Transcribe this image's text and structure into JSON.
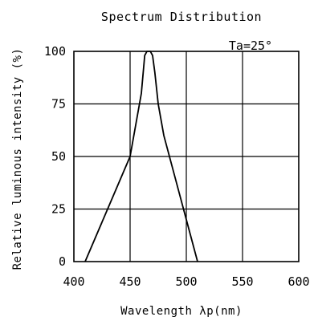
{
  "chart_data": {
    "type": "line",
    "title": "Spectrum Distribution",
    "xlabel": "Wavelength λp(nm)",
    "ylabel": "Relative luminous intensity (%)",
    "x_ticks": [
      "400",
      "450",
      "500",
      "550",
      "600"
    ],
    "y_ticks": [
      "0",
      "25",
      "50",
      "75",
      "100"
    ],
    "xlim": [
      400,
      600
    ],
    "ylim": [
      0,
      100
    ],
    "grid": true,
    "annotation": "Ta=25°",
    "series": [
      {
        "x": [
          410,
          430,
          450,
          460,
          463,
          465,
          468,
          470,
          472,
          475,
          480,
          490,
          500,
          510
        ],
        "y": [
          0,
          25,
          50,
          80,
          98,
          100,
          100,
          98,
          90,
          75,
          60,
          40,
          20,
          0
        ]
      }
    ]
  }
}
